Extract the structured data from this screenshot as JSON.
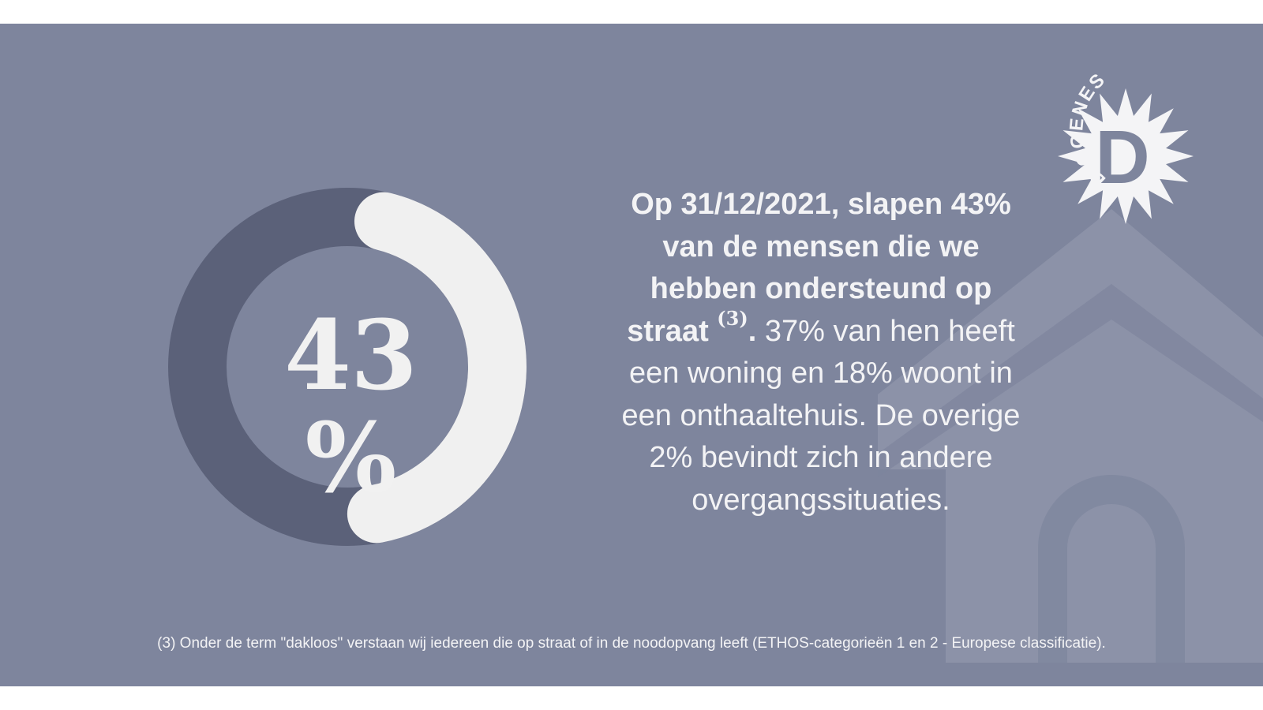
{
  "chart_data": {
    "type": "donut",
    "values": [
      43,
      57
    ],
    "labels": [
      "",
      ""
    ],
    "center_label": "43 %",
    "colors": {
      "highlight": "#f0f0f0",
      "remainder": "#5b6179",
      "background": "#7e859d"
    }
  },
  "statement": {
    "bold_text": "Op 31/12/2021, slapen 43% van de mensen die we hebben ondersteund op straat ",
    "sup_ref": "(3)",
    "bold_period": ".",
    "normal_text": " 37% van hen heeft een woning en 18% woont in een onthaaltehuis. De overige 2% bevindt zich in andere overgangssituaties."
  },
  "footnote": "(3) Onder de term \"dakloos\" verstaan wij iedereen die op straat of in de noodopvang leeft (ETHOS-categorieën 1 en 2 - Europese classificatie).",
  "logo": {
    "arc_text": "DIOGENES",
    "letter": "D"
  }
}
